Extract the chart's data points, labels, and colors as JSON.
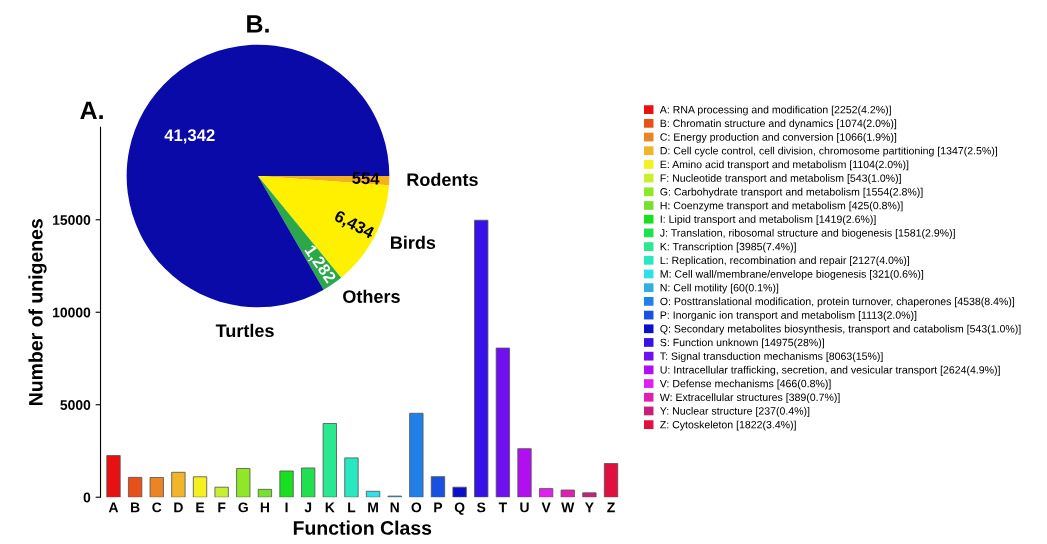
{
  "chart_data": [
    {
      "type": "bar",
      "title": "A.",
      "xlabel": "Function Class",
      "ylabel": "Number of unigenes",
      "categories": [
        "A",
        "B",
        "C",
        "D",
        "E",
        "F",
        "G",
        "H",
        "I",
        "J",
        "K",
        "L",
        "M",
        "N",
        "O",
        "P",
        "Q",
        "S",
        "T",
        "U",
        "V",
        "W",
        "Y",
        "Z"
      ],
      "series": [
        {
          "name": "A: RNA processing and modification [2252(4.2%)]",
          "color": "#e81010",
          "values": [
            2252,
            null,
            null,
            null,
            null,
            null,
            null,
            null,
            null,
            null,
            null,
            null,
            null,
            null,
            null,
            null,
            null,
            null,
            null,
            null,
            null,
            null,
            null,
            null
          ]
        },
        {
          "name": "B: Chromatin structure and dynamics [1074(2.0%)]",
          "color": "#e8501a",
          "values": [
            null,
            1074,
            null,
            null,
            null,
            null,
            null,
            null,
            null,
            null,
            null,
            null,
            null,
            null,
            null,
            null,
            null,
            null,
            null,
            null,
            null,
            null,
            null,
            null
          ]
        },
        {
          "name": "C: Energy production and conversion [1066(1.9%)]",
          "color": "#ea8424",
          "values": [
            null,
            null,
            1066,
            null,
            null,
            null,
            null,
            null,
            null,
            null,
            null,
            null,
            null,
            null,
            null,
            null,
            null,
            null,
            null,
            null,
            null,
            null,
            null,
            null
          ]
        },
        {
          "name": "D: Cell cycle control, cell division, chromosome partitioning [1347(2.5%)]",
          "color": "#f2b428",
          "values": [
            null,
            null,
            null,
            1347,
            null,
            null,
            null,
            null,
            null,
            null,
            null,
            null,
            null,
            null,
            null,
            null,
            null,
            null,
            null,
            null,
            null,
            null,
            null,
            null
          ]
        },
        {
          "name": "E: Amino acid transport and metabolism [1104(2.0%)]",
          "color": "#f5f020",
          "values": [
            null,
            null,
            null,
            null,
            1104,
            null,
            null,
            null,
            null,
            null,
            null,
            null,
            null,
            null,
            null,
            null,
            null,
            null,
            null,
            null,
            null,
            null,
            null,
            null
          ]
        },
        {
          "name": "F: Nucleotide transport and metabolism [543(1.0%)]",
          "color": "#c8f030",
          "values": [
            null,
            null,
            null,
            null,
            null,
            543,
            null,
            null,
            null,
            null,
            null,
            null,
            null,
            null,
            null,
            null,
            null,
            null,
            null,
            null,
            null,
            null,
            null,
            null
          ]
        },
        {
          "name": "G: Carbohydrate transport and metabolism [1554(2.8%)]",
          "color": "#8ee828",
          "values": [
            null,
            null,
            null,
            null,
            null,
            null,
            1554,
            null,
            null,
            null,
            null,
            null,
            null,
            null,
            null,
            null,
            null,
            null,
            null,
            null,
            null,
            null,
            null,
            null
          ]
        },
        {
          "name": "H: Coenzyme transport and metabolism [425(0.8%)]",
          "color": "#78e030",
          "values": [
            null,
            null,
            null,
            null,
            null,
            null,
            null,
            425,
            null,
            null,
            null,
            null,
            null,
            null,
            null,
            null,
            null,
            null,
            null,
            null,
            null,
            null,
            null,
            null
          ]
        },
        {
          "name": "I: Lipid transport and metabolism [1419(2.6%)]",
          "color": "#18e020",
          "values": [
            null,
            null,
            null,
            null,
            null,
            null,
            null,
            null,
            1419,
            null,
            null,
            null,
            null,
            null,
            null,
            null,
            null,
            null,
            null,
            null,
            null,
            null,
            null,
            null
          ]
        },
        {
          "name": "J: Translation, ribosomal structure and biogenesis [1581(2.9%)]",
          "color": "#20e050",
          "values": [
            null,
            null,
            null,
            null,
            null,
            null,
            null,
            null,
            null,
            1581,
            null,
            null,
            null,
            null,
            null,
            null,
            null,
            null,
            null,
            null,
            null,
            null,
            null,
            null
          ]
        },
        {
          "name": "K: Transcription [3985(7.4%)]",
          "color": "#28e890",
          "values": [
            null,
            null,
            null,
            null,
            null,
            null,
            null,
            null,
            null,
            null,
            3985,
            null,
            null,
            null,
            null,
            null,
            null,
            null,
            null,
            null,
            null,
            null,
            null,
            null
          ]
        },
        {
          "name": "L: Replication, recombination and repair [2127(4.0%)]",
          "color": "#28e8c0",
          "values": [
            null,
            null,
            null,
            null,
            null,
            null,
            null,
            null,
            null,
            null,
            null,
            2127,
            null,
            null,
            null,
            null,
            null,
            null,
            null,
            null,
            null,
            null,
            null,
            null
          ]
        },
        {
          "name": "M: Cell wall/membrane/envelope biogenesis [321(0.6%)]",
          "color": "#30e0e8",
          "values": [
            null,
            null,
            null,
            null,
            null,
            null,
            null,
            null,
            null,
            null,
            null,
            null,
            321,
            null,
            null,
            null,
            null,
            null,
            null,
            null,
            null,
            null,
            null,
            null
          ]
        },
        {
          "name": "N: Cell motility [60(0.1%)]",
          "color": "#30b0e0",
          "values": [
            null,
            null,
            null,
            null,
            null,
            null,
            null,
            null,
            null,
            null,
            null,
            null,
            null,
            60,
            null,
            null,
            null,
            null,
            null,
            null,
            null,
            null,
            null,
            null
          ]
        },
        {
          "name": "O: Posttranslational modification, protein turnover, chaperones [4538(8.4%)]",
          "color": "#2080e8",
          "values": [
            null,
            null,
            null,
            null,
            null,
            null,
            null,
            null,
            null,
            null,
            null,
            null,
            null,
            null,
            4538,
            null,
            null,
            null,
            null,
            null,
            null,
            null,
            null,
            null
          ]
        },
        {
          "name": "P: Inorganic ion transport and metabolism [1113(2.0%)]",
          "color": "#1850e0",
          "values": [
            null,
            null,
            null,
            null,
            null,
            null,
            null,
            null,
            null,
            null,
            null,
            null,
            null,
            null,
            null,
            1113,
            null,
            null,
            null,
            null,
            null,
            null,
            null,
            null
          ]
        },
        {
          "name": "Q: Secondary metabolites biosynthesis, transport and catabolism [543(1.0%)]",
          "color": "#0a10c8",
          "values": [
            null,
            null,
            null,
            null,
            null,
            null,
            null,
            null,
            null,
            null,
            null,
            null,
            null,
            null,
            null,
            null,
            543,
            null,
            null,
            null,
            null,
            null,
            null,
            null
          ]
        },
        {
          "name": "S: Function unknown [14975(28%)]",
          "color": "#3810e8",
          "values": [
            null,
            null,
            null,
            null,
            null,
            null,
            null,
            null,
            null,
            null,
            null,
            null,
            null,
            null,
            null,
            null,
            null,
            14975,
            null,
            null,
            null,
            null,
            null,
            null
          ]
        },
        {
          "name": "T: Signal transduction mechanisms [8063(15%)]",
          "color": "#7010f0",
          "values": [
            null,
            null,
            null,
            null,
            null,
            null,
            null,
            null,
            null,
            null,
            null,
            null,
            null,
            null,
            null,
            null,
            null,
            null,
            8063,
            null,
            null,
            null,
            null,
            null
          ]
        },
        {
          "name": "U: Intracellular trafficking, secretion, and vesicular transport [2624(4.9%)]",
          "color": "#b010f0",
          "values": [
            null,
            null,
            null,
            null,
            null,
            null,
            null,
            null,
            null,
            null,
            null,
            null,
            null,
            null,
            null,
            null,
            null,
            null,
            null,
            2624,
            null,
            null,
            null,
            null
          ]
        },
        {
          "name": "V: Defense mechanisms [466(0.8%)]",
          "color": "#e020f0",
          "values": [
            null,
            null,
            null,
            null,
            null,
            null,
            null,
            null,
            null,
            null,
            null,
            null,
            null,
            null,
            null,
            null,
            null,
            null,
            null,
            null,
            466,
            null,
            null,
            null
          ]
        },
        {
          "name": "W: Extracellular structures [389(0.7%)]",
          "color": "#e020b0",
          "values": [
            null,
            null,
            null,
            null,
            null,
            null,
            null,
            null,
            null,
            null,
            null,
            null,
            null,
            null,
            null,
            null,
            null,
            null,
            null,
            null,
            null,
            389,
            null,
            null
          ]
        },
        {
          "name": "Y: Nuclear structure [237(0.4%)]",
          "color": "#c8207a",
          "values": [
            null,
            null,
            null,
            null,
            null,
            null,
            null,
            null,
            null,
            null,
            null,
            null,
            null,
            null,
            null,
            null,
            null,
            null,
            null,
            null,
            null,
            null,
            237,
            null
          ]
        },
        {
          "name": "Z: Cytoskeleton [1822(3.4%)]",
          "color": "#e01040",
          "values": [
            null,
            null,
            null,
            null,
            null,
            null,
            null,
            null,
            null,
            null,
            null,
            null,
            null,
            null,
            null,
            null,
            null,
            null,
            null,
            null,
            null,
            null,
            null,
            1822
          ]
        }
      ],
      "ylim": [
        0,
        20000
      ],
      "yticks": [
        0,
        5000,
        10000,
        15000
      ],
      "legend": "right"
    },
    {
      "type": "pie",
      "title": "B.",
      "categories": [
        "Rodents",
        "Birds",
        "Others",
        "Turtles"
      ],
      "values": [
        554,
        6434,
        1282,
        41342
      ],
      "colors": [
        "#f5b01c",
        "#fff000",
        "#2aa84a",
        "#0a0aa8"
      ],
      "value_labels": [
        "554",
        "6,434",
        "1,282",
        "41,342"
      ]
    }
  ]
}
